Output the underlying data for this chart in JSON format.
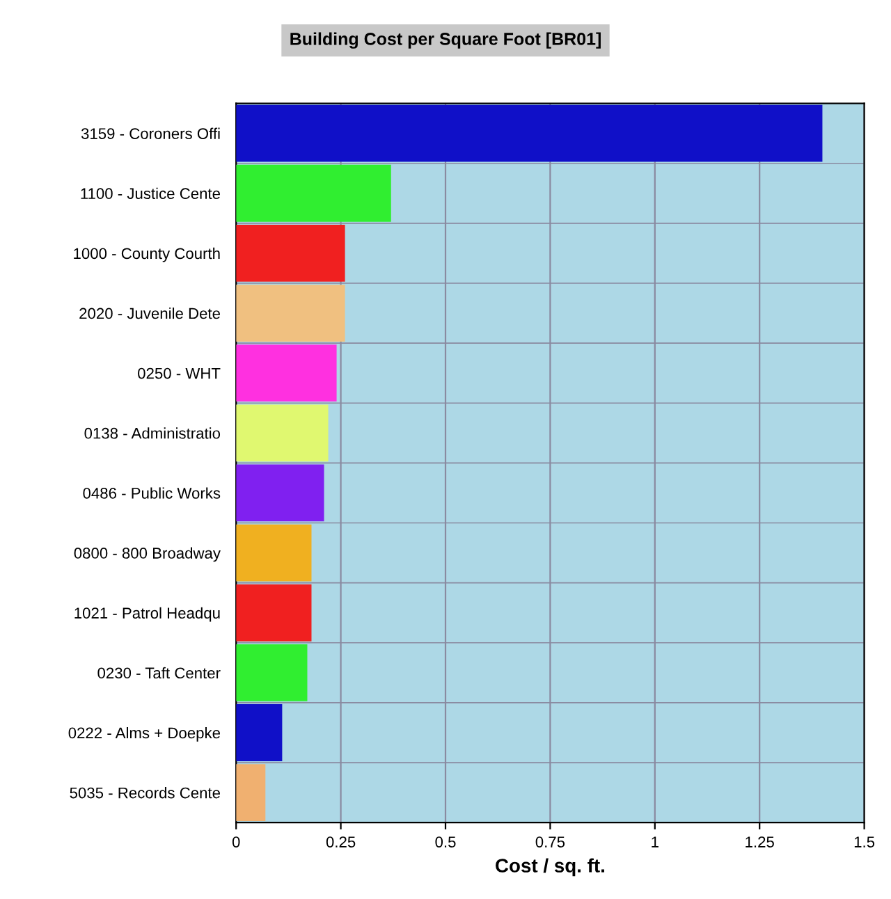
{
  "chart_data": {
    "type": "bar",
    "orientation": "horizontal",
    "title": "Building Cost per Square Foot [BR01]",
    "xlabel": "Cost / sq. ft.",
    "categories": [
      "3159 - Coroners Offi",
      "1100 - Justice Cente",
      "1000 - County Courth",
      "2020 - Juvenile Dete",
      "0250 - WHT",
      "0138 - Administratio",
      "0486 - Public Works",
      "0800 - 800 Broadway",
      "1021 - Patrol Headqu",
      "0230 - Taft Center",
      "0222 - Alms + Doepke",
      "5035 - Records Cente"
    ],
    "values": [
      1.4,
      0.37,
      0.26,
      0.26,
      0.24,
      0.22,
      0.21,
      0.18,
      0.18,
      0.17,
      0.11,
      0.07
    ],
    "colors": [
      "#1010c8",
      "#30ee30",
      "#f02020",
      "#f0c080",
      "#ff30e0",
      "#e0f870",
      "#8020f0",
      "#f0b020",
      "#f02020",
      "#30ee30",
      "#1010c8",
      "#f0b070"
    ],
    "xlim": [
      0,
      1.5
    ],
    "xticks": [
      0,
      0.25,
      0.5,
      0.75,
      1,
      1.25,
      1.5
    ],
    "grid": "x"
  }
}
